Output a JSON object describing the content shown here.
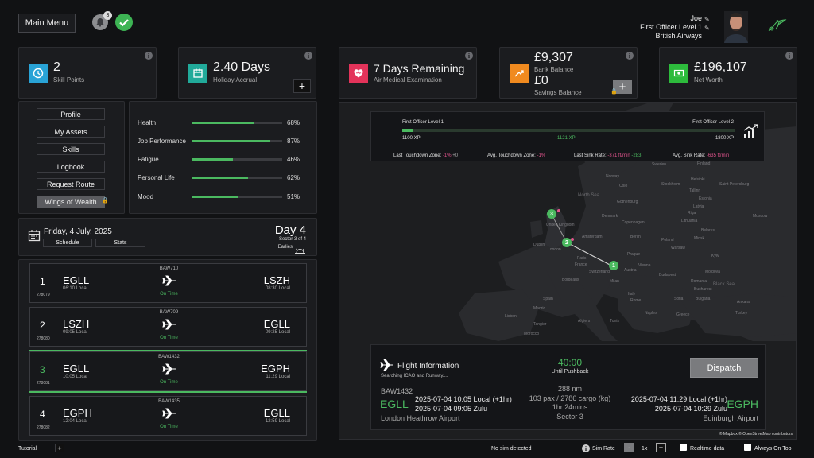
{
  "header": {
    "main_menu": "Main Menu",
    "notif_count": "3",
    "user_name": "Joe",
    "user_rank": "First Officer Level 1",
    "user_airline": "British Airways"
  },
  "stats": {
    "skill_points_value": "2",
    "skill_points_label": "Skill Points",
    "holiday_value": "2.40 Days",
    "holiday_label": "Holiday Accrual",
    "medical_value": "7 Days Remaining",
    "medical_label": "Air Medical Examination",
    "bank_value": "£9,307",
    "bank_label": "Bank Balance",
    "savings_value": "£0",
    "savings_label": "Savings Balance",
    "net_value": "£196,107",
    "net_label": "Net Worth"
  },
  "nav": {
    "items": [
      "Profile",
      "My Assets",
      "Skills",
      "Logbook",
      "Request Route",
      "Wings of Wealth"
    ]
  },
  "wellbeing": [
    {
      "label": "Health",
      "pct": "68%",
      "value": 68
    },
    {
      "label": "Job Performance",
      "pct": "87%",
      "value": 87
    },
    {
      "label": "Fatigue",
      "pct": "46%",
      "value": 46
    },
    {
      "label": "Personal Life",
      "pct": "62%",
      "value": 62
    },
    {
      "label": "Mood",
      "pct": "51%",
      "value": 51
    }
  ],
  "schedule": {
    "date": "Friday, 4 July, 2025",
    "tab_schedule": "Schedule",
    "tab_stats": "Stats",
    "day": "Day 4",
    "sector": "Sector 3 of 4",
    "shift": "Earlies"
  },
  "flights": [
    {
      "num": "1",
      "id": "278079",
      "callsign": "BAW710",
      "dep": "EGLL",
      "dep_time": "06:10 Local",
      "arr": "LSZH",
      "arr_time": "08:30 Local",
      "status": "On Time"
    },
    {
      "num": "2",
      "id": "278080",
      "callsign": "BAW709",
      "dep": "LSZH",
      "dep_time": "09:05 Local",
      "arr": "EGLL",
      "arr_time": "09:25 Local",
      "status": "On Time"
    },
    {
      "num": "3",
      "id": "278081",
      "callsign": "BAW1432",
      "dep": "EGLL",
      "dep_time": "10:05 Local",
      "arr": "EGPH",
      "arr_time": "11:29 Local",
      "status": "On Time"
    },
    {
      "num": "4",
      "id": "278082",
      "callsign": "BAW1435",
      "dep": "EGPH",
      "dep_time": "12:04 Local",
      "arr": "EGLL",
      "arr_time": "12:59 Local",
      "status": "On Time"
    }
  ],
  "progress": {
    "level_from": "First Officer Level 1",
    "level_to": "First Officer Level 2",
    "xp_min": "1100 XP",
    "xp_current": "1121 XP",
    "xp_max": "1800 XP",
    "fraction": 0.03,
    "ltz_label": "Last Touchdown Zone:",
    "ltz_value": "-1%",
    "ltz_extra": "+0",
    "atz_label": "Avg. Touchdown Zone:",
    "atz_value": "-1%",
    "lsr_label": "Last Sink Rate:",
    "lsr_value": "-371 ft/min",
    "lsr_extra": "-283",
    "asr_label": "Avg. Sink Rate:",
    "asr_value": "-635 ft/min"
  },
  "map": {
    "cities": [
      "Norway",
      "Oslo",
      "Stockholm",
      "Sweden",
      "Finland",
      "Helsinki",
      "Tallinn",
      "Estonia",
      "Saint Petersburg",
      "Latvia",
      "Riga",
      "Lithuania",
      "Gothenburg",
      "Denmark",
      "Copenhagen",
      "Belarus",
      "Minsk",
      "Moscow",
      "Dublin",
      "United Kingdom",
      "Amsterdam",
      "Berlin",
      "Poland",
      "Warsaw",
      "Kyiv",
      "London",
      "Prague",
      "Paris",
      "France",
      "Vienna",
      "Budapest",
      "Switzerland",
      "Austria",
      "Moldova",
      "Romania",
      "Bordeaux",
      "Milan",
      "Bucharest",
      "Italy",
      "Sofia",
      "Bulgaria",
      "Spain",
      "Madrid",
      "Rome",
      "Naples",
      "Turkey",
      "Ankara",
      "Lisbon",
      "Greece",
      "Tangier",
      "Algiers",
      "Tunis",
      "Morocco"
    ],
    "seas": [
      "North Sea",
      "Black Sea"
    ],
    "attribution": "© Mapbox © OpenStreetMap contributors",
    "markers": [
      "1",
      "2",
      "3"
    ]
  },
  "flight_info": {
    "title": "Flight Information",
    "status": "Searching ICAO and Runway....",
    "timer": "40:00",
    "timer_label": "Until Pushback",
    "dispatch": "Dispatch",
    "callsign": "BAW1432",
    "distance": "288 nm",
    "load": "103 pax / 2786 cargo (kg)",
    "duration": "1hr 24mins",
    "sector": "Sector 3",
    "dep_code": "EGLL",
    "dep_local": "2025-07-04 10:05 Local (+1hr)",
    "dep_zulu": "2025-07-04 09:05 Zulu",
    "dep_name": "London Heathrow Airport",
    "arr_code": "EGPH",
    "arr_local": "2025-07-04 11:29 Local (+1hr)",
    "arr_zulu": "2025-07-04 10:29 Zulu",
    "arr_name": "Edinburgh Airport"
  },
  "footer": {
    "tutorial": "Tutorial",
    "sim_status": "No sim detected",
    "sim_rate_label": "Sim Rate",
    "sim_rate_value": "1x",
    "realtime": "Realtime data",
    "always_on_top": "Always On Top"
  },
  "colors": {
    "accent_green": "#4bb960",
    "skill_icon": "#29a3d6",
    "holiday_icon": "#21aa9a",
    "medical_icon": "#e3335a",
    "bank_icon": "#f08a1f",
    "networth_icon": "#2dbb3c",
    "pink": "#e2548d"
  }
}
